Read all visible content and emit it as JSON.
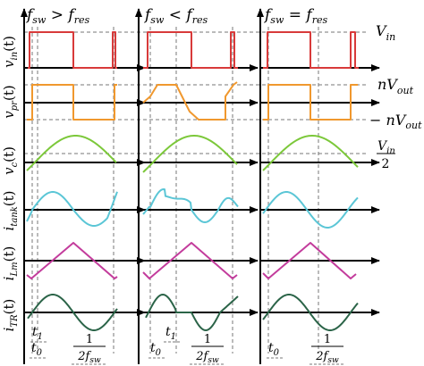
{
  "title": "",
  "columns": [
    {
      "main": "f",
      "sub1": "sw",
      "op": " > ",
      "sub2": "res"
    },
    {
      "main": "f",
      "sub1": "sw",
      "op": " < ",
      "sub2": "res"
    },
    {
      "main": "f",
      "sub1": "sw",
      "op": " = ",
      "sub2": "res"
    }
  ],
  "row_labels": [
    {
      "main": "v",
      "sub": "in",
      "tail": "(t)"
    },
    {
      "main": "v",
      "sub": "pr",
      "tail": "(t)"
    },
    {
      "main": "v",
      "sub": "c",
      "tail": "(t)"
    },
    {
      "main": "i",
      "sub": "tank",
      "tail": "(t)"
    },
    {
      "main": "i",
      "sub": "Lm",
      "tail": "(t)"
    },
    {
      "main": "i",
      "sub": "TR",
      "tail": "(t)"
    }
  ],
  "right_labels": {
    "vin": {
      "main": "V",
      "sub": "in"
    },
    "npos": {
      "pre": "",
      "main": "nV",
      "sub": "out"
    },
    "nneg": {
      "pre": "− ",
      "main": "nV",
      "sub": "out"
    },
    "half_num": {
      "main": "V",
      "sub": "in"
    },
    "half_den": "2"
  },
  "time_labels": {
    "t0": {
      "main": "t",
      "sub": "0"
    },
    "t1": {
      "main": "t",
      "sub": "1"
    },
    "period_num": "1",
    "period_den": {
      "main": "2f",
      "sub": "sw"
    }
  },
  "colors": {
    "vin": "#d83a3a",
    "vpr": "#f0982e",
    "vc": "#7cc83a",
    "itank": "#5bc6d6",
    "ilm": "#c33c9c",
    "itr": "#2b6448",
    "axis": "#000000",
    "guide": "#777777"
  }
}
